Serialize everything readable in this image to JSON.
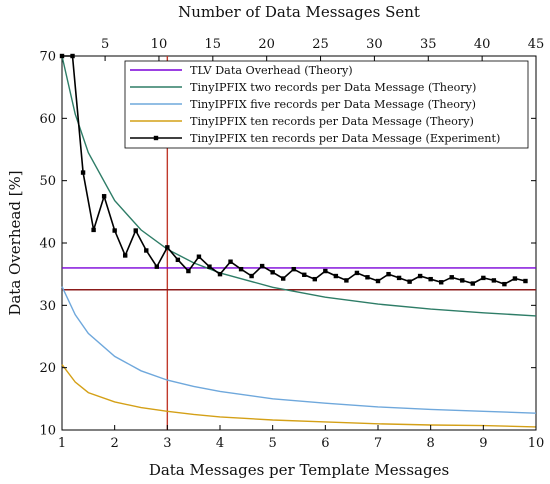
{
  "chart_data": {
    "type": "line",
    "xlabel": "Data Messages per Template Messages",
    "ylabel": "Data Overhead [%]",
    "top_xlabel": "Number of Data Messages Sent",
    "xlim": [
      1,
      10
    ],
    "ylim": [
      10,
      70
    ],
    "x_ticks": [
      1,
      2,
      3,
      4,
      5,
      6,
      7,
      8,
      9,
      10
    ],
    "y_ticks": [
      10,
      20,
      30,
      40,
      50,
      60,
      70
    ],
    "top_xlim": [
      1,
      45
    ],
    "top_x_ticks": [
      5,
      10,
      15,
      20,
      25,
      30,
      35,
      40,
      45
    ],
    "grid": false,
    "legend_position": "top-right",
    "series": [
      {
        "name": "TLV Data Overhead (Theory)",
        "color": "#7a00d9",
        "x": [
          1,
          10
        ],
        "y": [
          36,
          36
        ]
      },
      {
        "name": "TinyIPFIX two records per Data Message (Theory)",
        "color": "#2e7d67",
        "x": [
          1,
          1.25,
          1.5,
          2,
          2.5,
          3,
          3.5,
          4,
          5,
          6,
          7,
          8,
          9,
          10
        ],
        "y": [
          70,
          60.7,
          54.5,
          46.8,
          42.1,
          39,
          36.8,
          35.2,
          32.9,
          31.3,
          30.2,
          29.4,
          28.8,
          28.3
        ]
      },
      {
        "name": "TinyIPFIX five records per Data Message (Theory)",
        "color": "#6fa8dc",
        "x": [
          1,
          1.25,
          1.5,
          2,
          2.5,
          3,
          3.5,
          4,
          5,
          6,
          7,
          8,
          9,
          10
        ],
        "y": [
          33,
          28.5,
          25.5,
          21.8,
          19.5,
          18,
          17,
          16.2,
          15,
          14.3,
          13.7,
          13.3,
          13,
          12.7
        ]
      },
      {
        "name": "TinyIPFIX ten records per Data Message (Theory)",
        "color": "#d4a017",
        "x": [
          1,
          1.25,
          1.5,
          2,
          2.5,
          3,
          3.5,
          4,
          5,
          6,
          7,
          8,
          9,
          10
        ],
        "y": [
          20.5,
          17.7,
          16,
          14.5,
          13.6,
          13,
          12.5,
          12.1,
          11.6,
          11.3,
          11,
          10.8,
          10.7,
          10.5
        ]
      },
      {
        "name": "TinyIPFIX ten records per Data Message (Experiment)",
        "color": "#000000",
        "marker": "square",
        "x": [
          1,
          1.2,
          1.4,
          1.6,
          1.8,
          2,
          2.2,
          2.4,
          2.6,
          2.8,
          3,
          3.2,
          3.4,
          3.6,
          3.8,
          4,
          4.2,
          4.4,
          4.6,
          4.8,
          5,
          5.2,
          5.4,
          5.6,
          5.8,
          6,
          6.2,
          6.4,
          6.6,
          6.8,
          7,
          7.2,
          7.4,
          7.6,
          7.8,
          8,
          8.2,
          8.4,
          8.6,
          8.8,
          9,
          9.2,
          9.4,
          9.6,
          9.8
        ],
        "y": [
          70,
          70,
          51.3,
          42.1,
          47.5,
          42,
          38,
          42,
          38.8,
          36.2,
          39.3,
          37.3,
          35.5,
          37.8,
          36.2,
          35,
          37,
          35.8,
          34.7,
          36.3,
          35.3,
          34.3,
          35.8,
          34.9,
          34.2,
          35.5,
          34.7,
          34,
          35.2,
          34.5,
          33.9,
          35,
          34.4,
          33.8,
          34.7,
          34.2,
          33.7,
          34.5,
          34,
          33.5,
          34.4,
          34,
          33.4,
          34.3,
          33.9
        ]
      }
    ],
    "reference_lines": [
      {
        "orientation": "vertical",
        "x": 3,
        "color": "#c0392b"
      },
      {
        "orientation": "horizontal",
        "y": 32.5,
        "color": "#8b1a1a"
      }
    ]
  }
}
